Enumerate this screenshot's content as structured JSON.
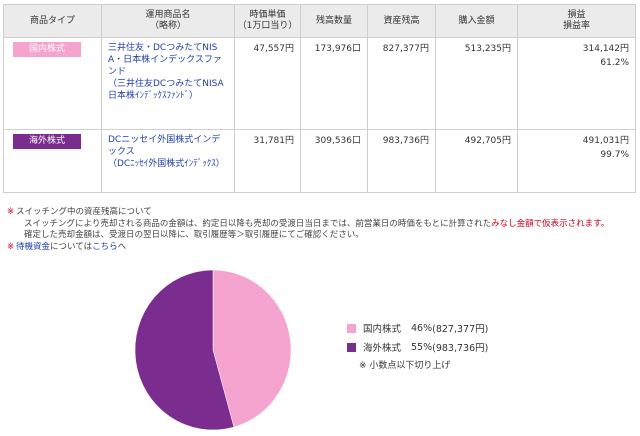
{
  "table": {
    "headers": {
      "type": "商品タイプ",
      "name": "運用商品名\n（略称）",
      "price": "時価単価\n（1万口当り）",
      "qty": "残高数量",
      "assets": "資産残高",
      "buy": "購入金額",
      "pl": "損益\n損益率"
    },
    "rows": [
      {
        "type": "国内株式",
        "name": "三井住友・DCつみたてNISA・日本株インデックスファンド",
        "alt": "（三井住友DCつみたてNISA日本株ｲﾝﾃﾞｯｸｽﾌｧﾝﾄﾞ）",
        "price": "47,557円",
        "qty": "173,976口",
        "assets": "827,377円",
        "buy": "513,235円",
        "pl": "314,142円",
        "pl_rate": "61.2%"
      },
      {
        "type": "海外株式",
        "name": "DCニッセイ外国株式インデックス",
        "alt": "（DCﾆｯｾｲ外国株式ｲﾝﾃﾞｯｸｽ）",
        "price": "31,781円",
        "qty": "309,536口",
        "assets": "983,736円",
        "buy": "492,705円",
        "pl": "491,031円",
        "pl_rate": "99.7%"
      }
    ]
  },
  "notes": {
    "mark": "※",
    "line1": "スイッチング中の資産残高について",
    "line2_a": "スイッチングにより売却される商品の金額は、約定日以降も売却の受渡日当日までは、前営業日の時価をもとに計算された",
    "line2_b": "みなし金額で仮表示されます。",
    "line3": "確定した売却金額は、受渡日の翌日以降に、取引履歴等＞取引履歴にてご確認ください。",
    "line4_link1": "待機資金",
    "line4_mid": "については",
    "line4_link2": "こちら",
    "line4_end": "へ"
  },
  "colors": {
    "domestic": "#f5a3cf",
    "foreign": "#7a2d8f"
  },
  "chart_data": {
    "type": "pie",
    "slices": [
      {
        "name": "国内株式",
        "percent_label": "46%",
        "value": 827377,
        "value_label": "(827,377円)",
        "color": "#f5a3cf"
      },
      {
        "name": "海外株式",
        "percent_label": "55%",
        "value": 983736,
        "value_label": "(983,736円)",
        "color": "#7a2d8f"
      }
    ],
    "note": "※ 小数点以下切り上げ"
  }
}
